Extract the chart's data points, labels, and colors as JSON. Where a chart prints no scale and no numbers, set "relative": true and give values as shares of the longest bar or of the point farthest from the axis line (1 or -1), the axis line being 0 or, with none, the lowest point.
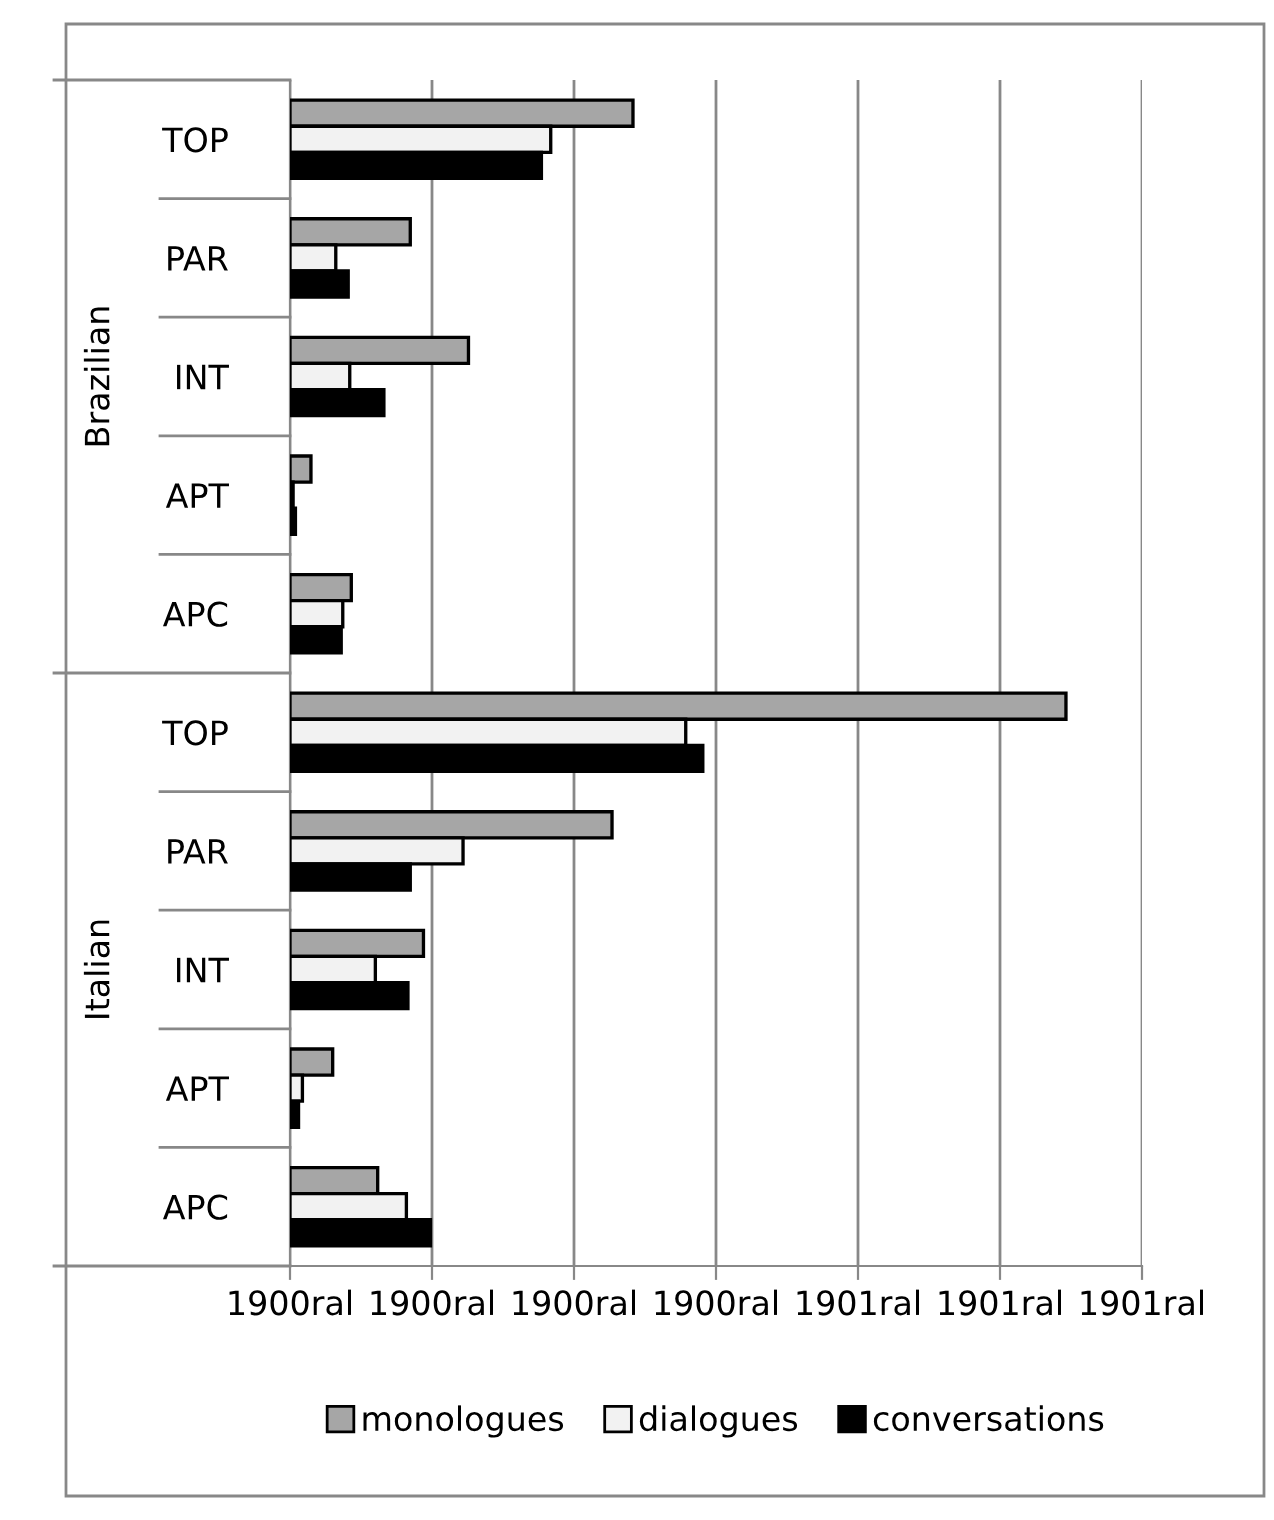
{
  "chart_data": {
    "type": "bar",
    "orientation": "horizontal",
    "relative": true,
    "categories": [
      "TOP",
      "PAR",
      "INT",
      "APT",
      "APC",
      "TOP",
      "PAR",
      "INT",
      "APT",
      "APC"
    ],
    "annotations": [
      "Brazilian",
      "Italian",
      "1900ral",
      "1900ral",
      "1900ral",
      "1900ral",
      "1901ral",
      "1901ral",
      "1901ral"
    ],
    "series": [
      {
        "name": "monologues",
        "color": "#a6a6a6",
        "values": [
          0.442,
          0.155,
          0.23,
          0.027,
          0.079,
          1,
          0.415,
          0.172,
          0.055,
          0.113
        ]
      },
      {
        "name": "dialogues",
        "color": "#f2f2f2",
        "values": [
          0.336,
          0.059,
          0.077,
          0.004,
          0.068,
          0.51,
          0.223,
          0.11,
          0.016,
          0.15
        ]
      },
      {
        "name": "conversations",
        "color": "#000000",
        "values": [
          0.324,
          0.075,
          0.121,
          0.007,
          0.066,
          0.532,
          0.155,
          0.152,
          0.011,
          0.181
        ]
      }
    ],
    "grid": "x",
    "legend": "bottom"
  }
}
